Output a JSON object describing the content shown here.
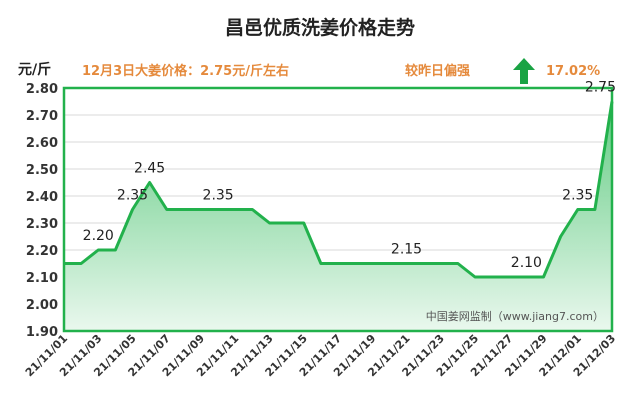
{
  "chart_data": {
    "type": "area",
    "title": "昌邑优质洗姜价格走势",
    "ylabel": "元/斤",
    "price_note": "12月3日大姜价格：2.75元/斤左右",
    "change_label": "较昨日偏强",
    "change_value": "17.02%",
    "change_direction": "up",
    "watermark": "中国姜网监制（www.jiang7.com）",
    "ylim": [
      1.9,
      2.8
    ],
    "y_ticks": [
      "1.90",
      "2.00",
      "2.10",
      "2.20",
      "2.30",
      "2.40",
      "2.50",
      "2.60",
      "2.70",
      "2.80"
    ],
    "x_tick_labels": [
      "21/11/01",
      "21/11/03",
      "21/11/05",
      "21/11/07",
      "21/11/09",
      "21/11/11",
      "21/11/13",
      "21/11/15",
      "21/11/17",
      "21/11/19",
      "21/11/21",
      "21/11/23",
      "21/11/25",
      "21/11/27",
      "21/11/29",
      "21/12/01",
      "21/12/03"
    ],
    "x": [
      "21/11/01",
      "21/11/02",
      "21/11/03",
      "21/11/04",
      "21/11/05",
      "21/11/06",
      "21/11/07",
      "21/11/08",
      "21/11/09",
      "21/11/10",
      "21/11/11",
      "21/11/12",
      "21/11/13",
      "21/11/14",
      "21/11/15",
      "21/11/16",
      "21/11/17",
      "21/11/18",
      "21/11/19",
      "21/11/20",
      "21/11/21",
      "21/11/22",
      "21/11/23",
      "21/11/24",
      "21/11/25",
      "21/11/26",
      "21/11/27",
      "21/11/28",
      "21/11/29",
      "21/11/30",
      "21/12/01",
      "21/12/02",
      "21/12/03"
    ],
    "values": [
      2.15,
      2.15,
      2.2,
      2.2,
      2.35,
      2.45,
      2.35,
      2.35,
      2.35,
      2.35,
      2.35,
      2.35,
      2.3,
      2.3,
      2.3,
      2.15,
      2.15,
      2.15,
      2.15,
      2.15,
      2.15,
      2.15,
      2.15,
      2.15,
      2.1,
      2.1,
      2.1,
      2.1,
      2.1,
      2.25,
      2.35,
      2.35,
      2.75
    ],
    "data_labels": [
      {
        "x": "21/11/03",
        "text": "2.20"
      },
      {
        "x": "21/11/05",
        "text": "2.35"
      },
      {
        "x": "21/11/06",
        "text": "2.45"
      },
      {
        "x": "21/11/10",
        "text": "2.35"
      },
      {
        "x": "21/11/21",
        "text": "2.15"
      },
      {
        "x": "21/11/28",
        "text": "2.10"
      },
      {
        "x": "21/12/01",
        "text": "2.35"
      },
      {
        "x": "21/12/03",
        "text": "2.75"
      }
    ],
    "line_color": "#22b14c",
    "fill_color": "#7dd394",
    "arrow_color": "#1aa344",
    "grid": true,
    "legend": "none"
  }
}
